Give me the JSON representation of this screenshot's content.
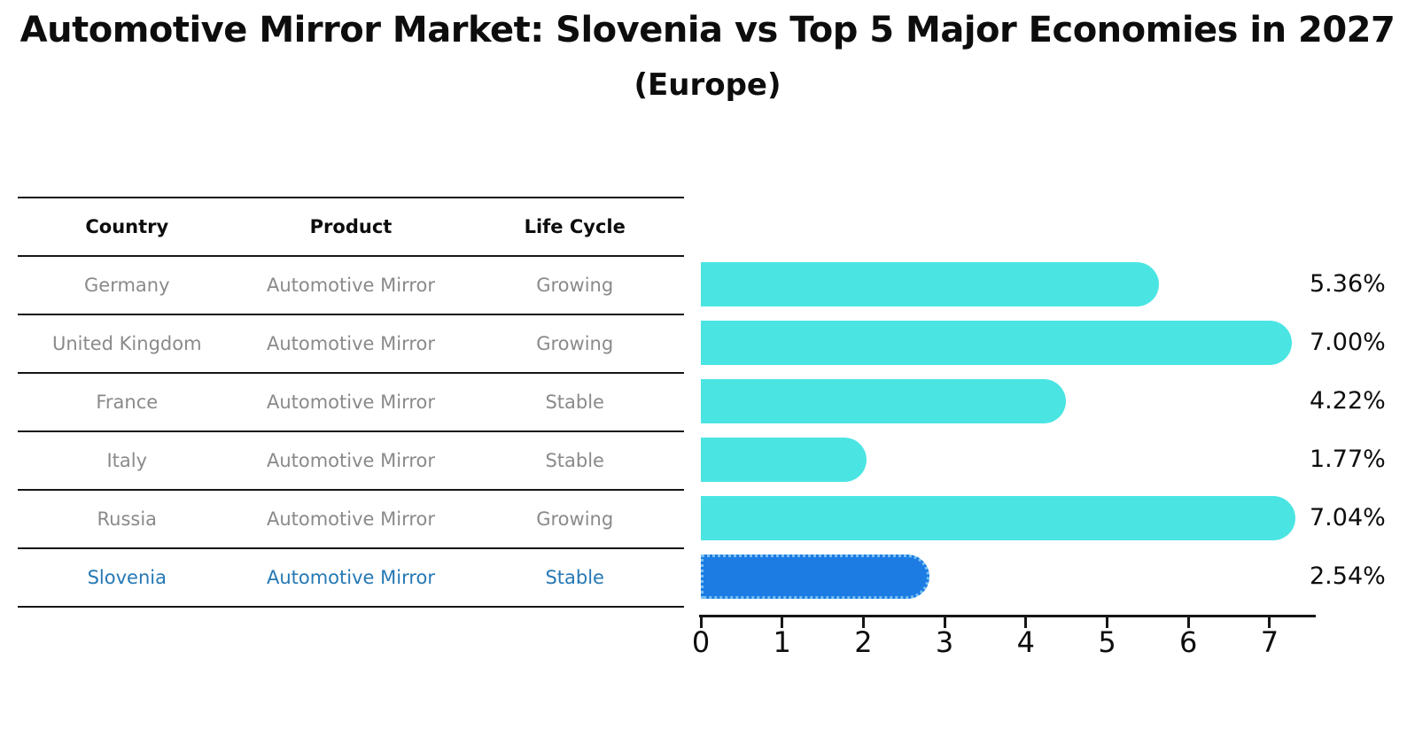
{
  "title": "Automotive Mirror Market: Slovenia vs Top 5 Major Economies in 2027",
  "subtitle": "(Europe)",
  "table": {
    "headers": {
      "country": "Country",
      "product": "Product",
      "life_cycle": "Life Cycle"
    },
    "rows": [
      {
        "country": "Germany",
        "product": "Automotive Mirror",
        "life_cycle": "Growing"
      },
      {
        "country": "United Kingdom",
        "product": "Automotive Mirror",
        "life_cycle": "Growing"
      },
      {
        "country": "France",
        "product": "Automotive Mirror",
        "life_cycle": "Stable"
      },
      {
        "country": "Italy",
        "product": "Automotive Mirror",
        "life_cycle": "Stable"
      },
      {
        "country": "Russia",
        "product": "Automotive Mirror",
        "life_cycle": "Growing"
      },
      {
        "country": "Slovenia",
        "product": "Automotive Mirror",
        "life_cycle": "Stable"
      }
    ],
    "highlight_row": "Slovenia"
  },
  "chart_data": {
    "type": "bar",
    "orientation": "horizontal",
    "categories": [
      "Germany",
      "United Kingdom",
      "France",
      "Italy",
      "Russia",
      "Slovenia"
    ],
    "values": [
      5.36,
      7.0,
      4.22,
      1.77,
      7.04,
      2.54
    ],
    "value_labels": [
      "5.36%",
      "7.00%",
      "4.22%",
      "1.77%",
      "7.04%",
      "2.54%"
    ],
    "xticks": [
      "0",
      "1",
      "2",
      "3",
      "4",
      "5",
      "6",
      "7"
    ],
    "xlim": [
      0,
      7.45
    ],
    "grid": false,
    "legend": "none",
    "bar_color": "#4ae5e3",
    "highlight_index": 5,
    "highlight_bar_color": "#1d7ce4",
    "highlight_border_color": "#79c1f1"
  },
  "colors": {
    "text": "#0d0d0d",
    "muted_text": "#8a8a8a",
    "highlight_text": "#2578b5",
    "axis": "#161616",
    "background": "#ffffff"
  }
}
